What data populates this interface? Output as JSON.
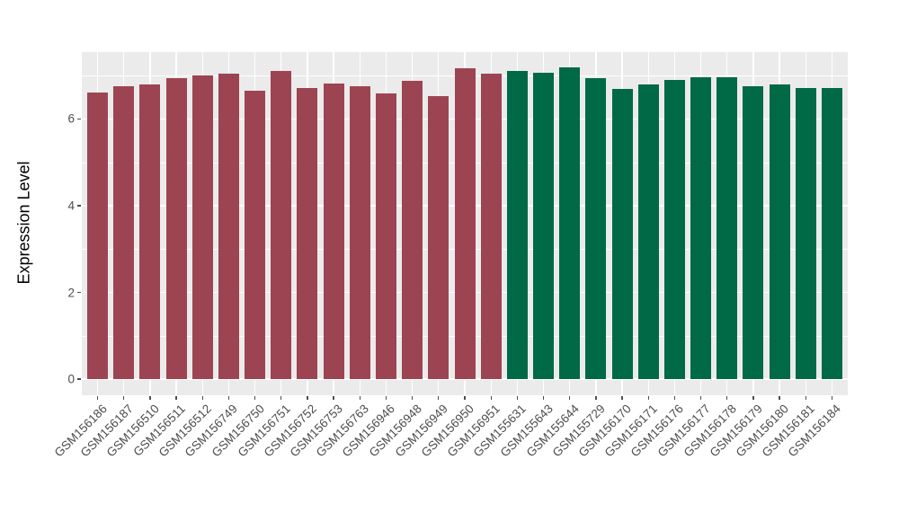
{
  "chart_data": {
    "type": "bar",
    "title": "",
    "ylabel": "Expression Level",
    "xlabel": "",
    "legend_position": "none",
    "grid": "white major and minor horizontal gridlines, white vertical gridlines at each category, on gray panel",
    "ylim": [
      -0.36,
      7.55
    ],
    "yticks": [
      0,
      2,
      4,
      6
    ],
    "minor_gridlines": [
      1,
      3,
      5,
      7
    ],
    "group_colors": {
      "group1": "#9D4452",
      "group2": "#006946"
    },
    "bars": [
      {
        "label": "GSM156186",
        "value": 6.6,
        "group": "group1"
      },
      {
        "label": "GSM156187",
        "value": 6.76,
        "group": "group1"
      },
      {
        "label": "GSM156510",
        "value": 6.79,
        "group": "group1"
      },
      {
        "label": "GSM156511",
        "value": 6.93,
        "group": "group1"
      },
      {
        "label": "GSM156512",
        "value": 7.01,
        "group": "group1"
      },
      {
        "label": "GSM156749",
        "value": 7.04,
        "group": "group1"
      },
      {
        "label": "GSM156750",
        "value": 6.64,
        "group": "group1"
      },
      {
        "label": "GSM156751",
        "value": 7.1,
        "group": "group1"
      },
      {
        "label": "GSM156752",
        "value": 6.71,
        "group": "group1"
      },
      {
        "label": "GSM156753",
        "value": 6.81,
        "group": "group1"
      },
      {
        "label": "GSM156763",
        "value": 6.75,
        "group": "group1"
      },
      {
        "label": "GSM156946",
        "value": 6.59,
        "group": "group1"
      },
      {
        "label": "GSM156948",
        "value": 6.87,
        "group": "group1"
      },
      {
        "label": "GSM156949",
        "value": 6.52,
        "group": "group1"
      },
      {
        "label": "GSM156950",
        "value": 7.17,
        "group": "group1"
      },
      {
        "label": "GSM156951",
        "value": 7.05,
        "group": "group1"
      },
      {
        "label": "GSM155631",
        "value": 7.11,
        "group": "group2"
      },
      {
        "label": "GSM155643",
        "value": 7.07,
        "group": "group2"
      },
      {
        "label": "GSM155644",
        "value": 7.19,
        "group": "group2"
      },
      {
        "label": "GSM155729",
        "value": 6.93,
        "group": "group2"
      },
      {
        "label": "GSM156170",
        "value": 6.7,
        "group": "group2"
      },
      {
        "label": "GSM156171",
        "value": 6.8,
        "group": "group2"
      },
      {
        "label": "GSM156176",
        "value": 6.89,
        "group": "group2"
      },
      {
        "label": "GSM156177",
        "value": 6.96,
        "group": "group2"
      },
      {
        "label": "GSM156178",
        "value": 6.95,
        "group": "group2"
      },
      {
        "label": "GSM156179",
        "value": 6.76,
        "group": "group2"
      },
      {
        "label": "GSM156180",
        "value": 6.8,
        "group": "group2"
      },
      {
        "label": "GSM156181",
        "value": 6.71,
        "group": "group2"
      },
      {
        "label": "GSM156184",
        "value": 6.72,
        "group": "group2"
      }
    ]
  },
  "panel_style": {
    "background_color": "#EBEBEB",
    "gridline_color": "#FFFFFF",
    "figure_background": "#FFFFFF"
  },
  "axis_style": {
    "tick_label_color": "#4D4D4D",
    "axis_title_color": "#000000"
  }
}
